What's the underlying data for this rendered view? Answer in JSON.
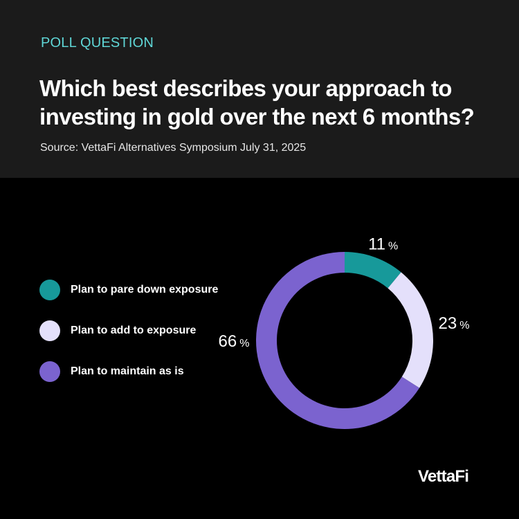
{
  "header": {
    "kicker": "POLL QUESTION",
    "title": "Which best describes your approach to investing in gold over the next 6 months?",
    "source": "Source: VettaFi Alternatives Symposium July 31, 2025"
  },
  "legend": [
    {
      "label": "Plan to pare down exposure",
      "color": "#17999a"
    },
    {
      "label": "Plan to add to exposure",
      "color": "#e4e0fb"
    },
    {
      "label": "Plan to maintain as is",
      "color": "#7b63cf"
    }
  ],
  "chart_data": {
    "type": "pie",
    "variant": "donut",
    "categories": [
      "Plan to pare down exposure",
      "Plan to add to exposure",
      "Plan to maintain as is"
    ],
    "values": [
      11,
      23,
      66
    ],
    "unit": "%",
    "colors": [
      "#17999a",
      "#e4e0fb",
      "#7b63cf"
    ],
    "start_angle": "12 o'clock",
    "direction": "clockwise"
  },
  "brand": {
    "logo_text": "VettaFi"
  }
}
